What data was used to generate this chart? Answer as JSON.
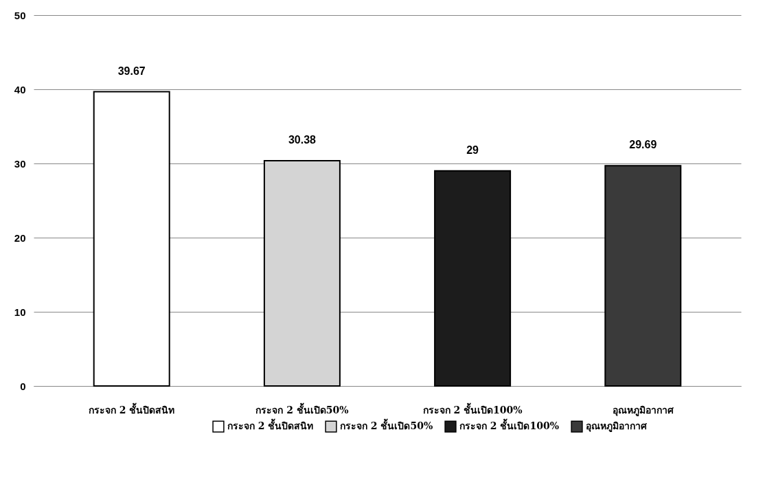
{
  "chart_data": {
    "type": "bar",
    "categories": [
      "กระจก 2 ชั้นปิดสนิท",
      "กระจก 2 ชั้นเปิด50%",
      "กระจก 2 ชั้นเปิด100%",
      "อุณหภูมิอากาศ"
    ],
    "series": [
      {
        "name": "กระจก 2 ชั้นปิดสนิท",
        "color": "#ffffff",
        "values": [
          39.67,
          null,
          null,
          null
        ]
      },
      {
        "name": "กระจก 2 ชั้นเปิด50%",
        "color": "#d4d4d4",
        "values": [
          null,
          30.38,
          null,
          null
        ]
      },
      {
        "name": "กระจก 2 ชั้นเปิด100%",
        "color": "#1c1c1c",
        "values": [
          null,
          null,
          29,
          null
        ]
      },
      {
        "name": "อุณหภูมิอากาศ",
        "color": "#3a3a3a",
        "values": [
          null,
          null,
          null,
          29.69
        ]
      }
    ],
    "ylim": [
      0,
      50
    ],
    "yticks": [
      0,
      10,
      20,
      30,
      40,
      50
    ],
    "grid": "y",
    "legend": "bottom",
    "data_labels": true
  }
}
